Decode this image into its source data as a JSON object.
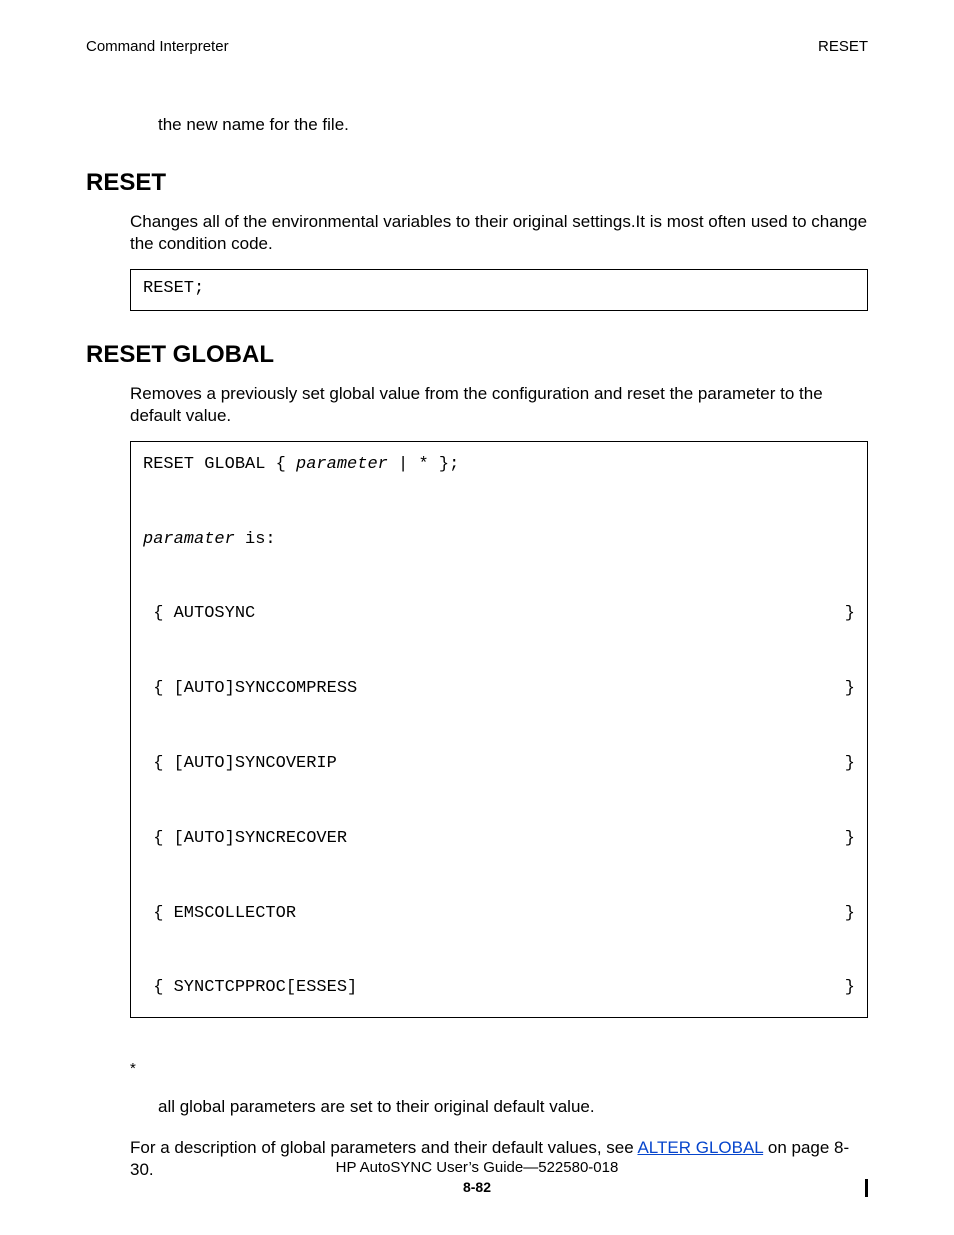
{
  "header": {
    "left": "Command Interpreter",
    "right": "RESET"
  },
  "continuation": "the new name for the file.",
  "reset": {
    "heading": "RESET",
    "body": "Changes all of the environmental variables to their original settings.It is most often used to change the condition code.",
    "code": "RESET;"
  },
  "reset_global": {
    "heading": "RESET GLOBAL",
    "body": "Removes a previously set global value from the configuration and reset the parameter to the default value.",
    "code_line_prefix": "RESET GLOBAL { ",
    "code_line_param": "parameter",
    "code_line_suffix": " | * };",
    "param_label_italic": "paramater",
    "param_label_rest": " is:",
    "rows": [
      {
        "left": " { AUTOSYNC",
        "right": "}"
      },
      {
        "left": " { [AUTO]SYNCCOMPRESS",
        "right": "}"
      },
      {
        "left": " { [AUTO]SYNCOVERIP",
        "right": "}"
      },
      {
        "left": " { [AUTO]SYNCRECOVER",
        "right": "}"
      },
      {
        "left": " { EMSCOLLECTOR",
        "right": "}"
      },
      {
        "left": " { SYNCTCPPROC[ESSES]",
        "right": "}"
      }
    ],
    "asterisk": "*",
    "asterisk_desc": "all global parameters are set to their original default value.",
    "ref_prefix": "For a description of global parameters and their default values, see ",
    "ref_link": "ALTER GLOBAL",
    "ref_suffix": " on page 8-30."
  },
  "footer": {
    "line1": "HP AutoSYNC User’s Guide—522580-018",
    "page": "8-82"
  }
}
